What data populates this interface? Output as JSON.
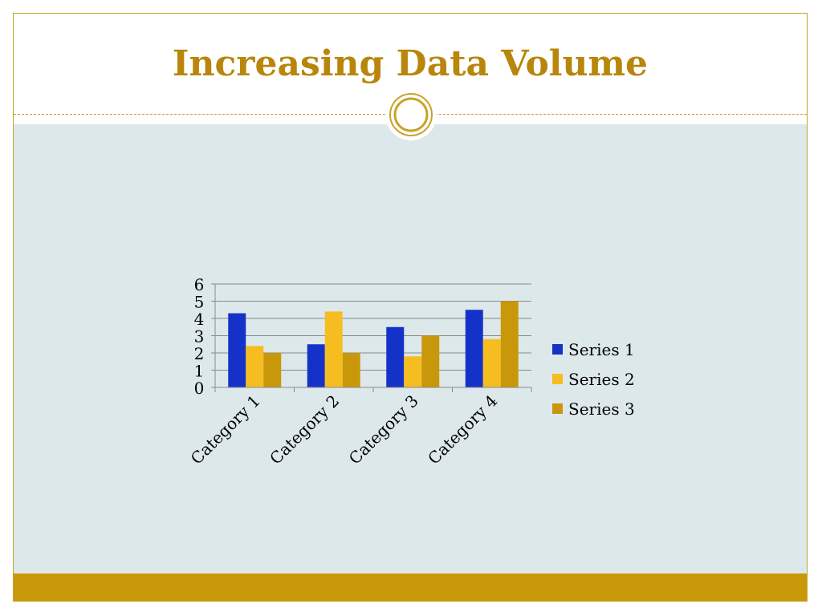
{
  "slide": {
    "title": "Increasing Data Volume"
  },
  "colors": {
    "accent": "#b8860b",
    "frame": "#c9a227",
    "content_background": "#dde8ea",
    "footer_band": "#c9970a",
    "series1": "#1432c8",
    "series2": "#f5bd1f",
    "series3": "#c9970a"
  },
  "chart_data": {
    "type": "bar",
    "title": "",
    "xlabel": "",
    "ylabel": "",
    "categories": [
      "Category 1",
      "Category 2",
      "Category 3",
      "Category 4"
    ],
    "series": [
      {
        "name": "Series 1",
        "values": [
          4.3,
          2.5,
          3.5,
          4.5
        ]
      },
      {
        "name": "Series 2",
        "values": [
          2.4,
          4.4,
          1.8,
          2.8
        ]
      },
      {
        "name": "Series 3",
        "values": [
          2,
          2,
          3,
          5
        ]
      }
    ],
    "ylim": [
      0,
      6
    ],
    "yticks": [
      "0",
      "1",
      "2",
      "3",
      "4",
      "5",
      "6"
    ],
    "grid": true,
    "legend_position": "right"
  }
}
